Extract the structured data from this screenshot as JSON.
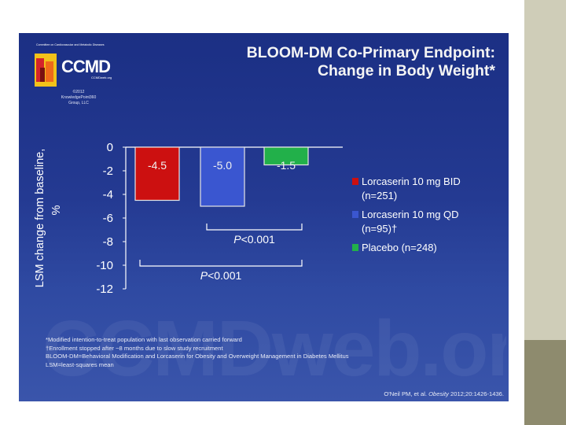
{
  "slide": {
    "title_line1": "BLOOM-DM Co-Primary Endpoint:",
    "title_line2": "Change in Body Weight*",
    "logo": {
      "caption": "Committee on Cardiovascular and Metabolic Diseases",
      "name": "CCMD",
      "url": "CCMDweb.org",
      "note_lines": [
        "©2012",
        "KnowledgePoint360",
        "Group, LLC"
      ]
    },
    "watermark_text": "CCMDweb.org",
    "footnotes": [
      "*Modified intention-to-treat population with last observation carried forward",
      "†Enrollment stopped after ~8 months due to slow study recruitment",
      "BLOOM-DM=Behavioral Modification and Lorcaserin for Obesity and Overweight Management in Diabetes Mellitus",
      "LSM=least-squares mean"
    ],
    "citation": {
      "authors": "O'Neil PM, et al.",
      "journal": "Obesity",
      "details": "2012;20:1426-1436."
    }
  },
  "chart_data": {
    "type": "bar",
    "categories": [
      "Lorcaserin 10 mg BID (n=251)",
      "Lorcaserin 10 mg QD (n=95)†",
      "Placebo (n=248)"
    ],
    "values": [
      -4.5,
      -5.0,
      -1.5
    ],
    "data_labels": [
      "-4.5",
      "-5.0",
      "-1.5"
    ],
    "colors": [
      "#cc1010",
      "#3a56d0",
      "#22b04a"
    ],
    "ylabel": "LSM change from baseline, %",
    "ylim": [
      -12,
      0
    ],
    "yticks": [
      0,
      -2,
      -4,
      -6,
      -8,
      -10,
      -12
    ],
    "ytick_labels": [
      "0",
      "-2",
      "-4",
      "-6",
      "-8",
      "-10",
      "-12"
    ],
    "legend_position": "right",
    "legend": [
      {
        "line1": "Lorcaserin 10 mg BID",
        "line2": "(n=251)",
        "color": "#cc1010"
      },
      {
        "line1": "Lorcaserin 10 mg QD",
        "line2": "(n=95)†",
        "color": "#3a56d0"
      },
      {
        "line1": "Placebo (n=248)",
        "line2": "",
        "color": "#22b04a"
      }
    ],
    "annotations": [
      {
        "text": "P<0.001",
        "italic_prefix": "P",
        "rest": "<0.001",
        "from": 1,
        "to": 2
      },
      {
        "text": "P<0.001",
        "italic_prefix": "P",
        "rest": "<0.001",
        "from": 0,
        "to": 2
      }
    ]
  }
}
